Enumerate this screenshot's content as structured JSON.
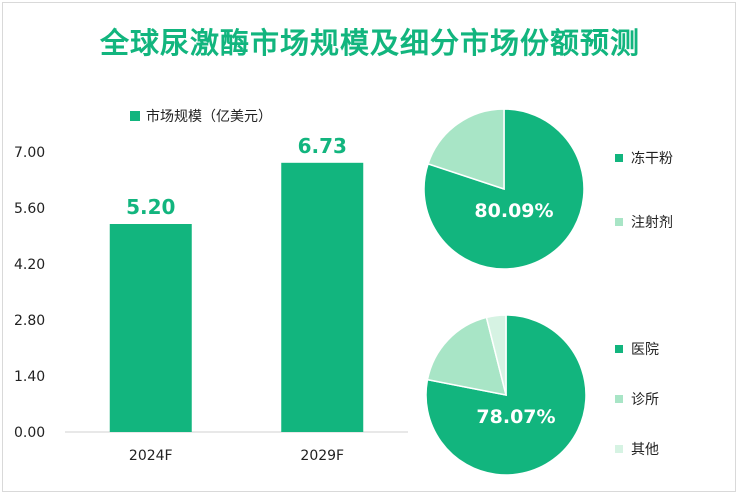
{
  "title": "全球尿激酶市场规模及细分市场份额预测",
  "chart_data": [
    {
      "type": "bar",
      "categories": [
        "2024F",
        "2029F"
      ],
      "series": [
        {
          "name": "市场规模（亿美元）",
          "values": [
            5.2,
            6.73
          ]
        }
      ],
      "value_labels": [
        "5.20",
        "6.73"
      ],
      "yticks": [
        "0.00",
        "1.40",
        "2.80",
        "4.20",
        "5.60",
        "7.00"
      ],
      "ylim": [
        0,
        7.0
      ],
      "grid": false,
      "legend_position": "top",
      "color": "#12b57e"
    },
    {
      "type": "pie",
      "labels": [
        "冻干粉",
        "注射剂"
      ],
      "values": [
        80.09,
        19.91
      ],
      "colors": [
        "#12b57e",
        "#a8e5c6"
      ],
      "data_label": "80.09%",
      "legend_position": "right"
    },
    {
      "type": "pie",
      "labels": [
        "医院",
        "诊所",
        "其他"
      ],
      "values": [
        78.07,
        18.0,
        3.93
      ],
      "colors": [
        "#12b57e",
        "#a8e5c6",
        "#d6f3e3"
      ],
      "data_label": "78.07%",
      "legend_position": "right"
    }
  ]
}
